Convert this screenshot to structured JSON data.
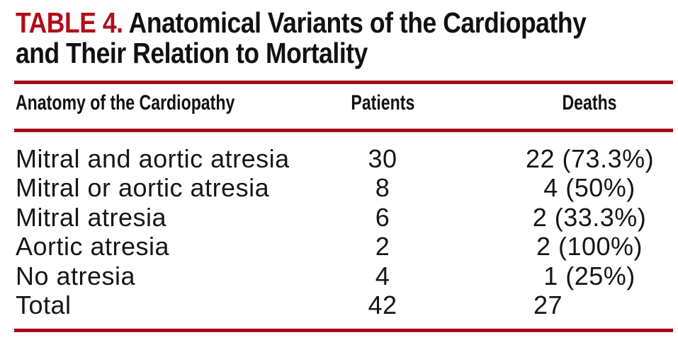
{
  "colors": {
    "title_red": "#B00E18",
    "rule_red": "#A30C13",
    "text": "#121212"
  },
  "title": {
    "label": "TABLE 4.",
    "line1": "Anatomical Variants of the Cardiopathy",
    "line2": "and Their Relation to Mortality"
  },
  "table": {
    "headers": {
      "anatomy": "Anatomy of the Cardiopathy",
      "patients": "Patients",
      "deaths": "Deaths"
    },
    "rows": [
      {
        "anatomy": "Mitral and aortic atresia",
        "patients": "30",
        "deaths": "22 (73.3%)"
      },
      {
        "anatomy": "Mitral or aortic atresia",
        "patients": "8",
        "deaths": "4 (50%)"
      },
      {
        "anatomy": "Mitral atresia",
        "patients": "6",
        "deaths": "2 (33.3%)"
      },
      {
        "anatomy": "Aortic atresia",
        "patients": "2",
        "deaths": "2 (100%)"
      },
      {
        "anatomy": "No atresia",
        "patients": "4",
        "deaths": "1 (25%)"
      },
      {
        "anatomy": "Total",
        "patients": "42",
        "deaths": "27"
      }
    ]
  },
  "chart_data": {
    "type": "table",
    "title": "TABLE 4. Anatomical Variants of the Cardiopathy and Their Relation to Mortality",
    "columns": [
      "Anatomy of the Cardiopathy",
      "Patients",
      "Deaths"
    ],
    "rows": [
      [
        "Mitral and aortic atresia",
        30,
        "22 (73.3%)"
      ],
      [
        "Mitral or aortic atresia",
        8,
        "4 (50%)"
      ],
      [
        "Mitral atresia",
        6,
        "2 (33.3%)"
      ],
      [
        "Aortic atresia",
        2,
        "2 (100%)"
      ],
      [
        "No atresia",
        4,
        "1 (25%)"
      ],
      [
        "Total",
        42,
        "27"
      ]
    ]
  }
}
